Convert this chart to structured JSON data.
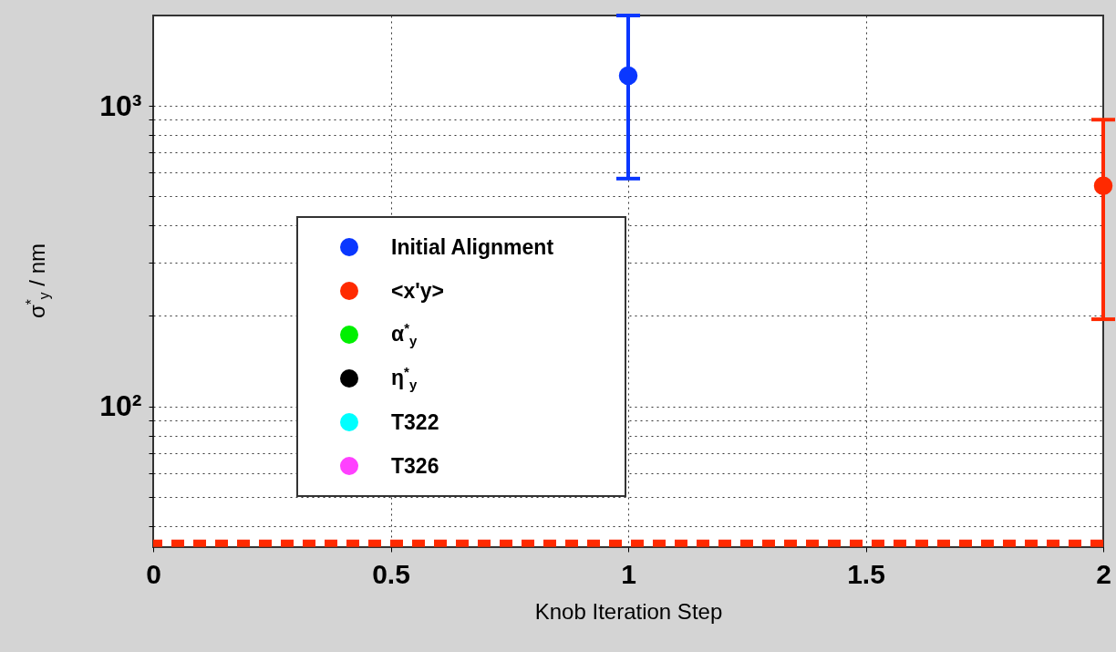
{
  "chart_data": {
    "type": "scatter",
    "xlabel": "Knob Iteration Step",
    "ylabel": "σ$^{*}$$_{y}$ / nm",
    "log": "y",
    "grid": true,
    "legend": "left",
    "marker": "circle",
    "xlim": [
      0,
      2
    ],
    "xticks": [
      0,
      0.5,
      1,
      1.5,
      2
    ],
    "ylim": [
      34,
      2000
    ],
    "yticks": [
      {
        "value": 40,
        "label": null
      },
      {
        "value": 50,
        "label": null
      },
      {
        "value": 60,
        "label": null
      },
      {
        "value": 70,
        "label": null
      },
      {
        "value": 80,
        "label": null
      },
      {
        "value": 90,
        "label": null
      },
      {
        "value": 100,
        "label": "10²"
      },
      {
        "value": 200,
        "label": null
      },
      {
        "value": 300,
        "label": null
      },
      {
        "value": 400,
        "label": null
      },
      {
        "value": 500,
        "label": null
      },
      {
        "value": 600,
        "label": null
      },
      {
        "value": 700,
        "label": null
      },
      {
        "value": 800,
        "label": null
      },
      {
        "value": 900,
        "label": null
      },
      {
        "value": 1000,
        "label": "10³"
      }
    ],
    "series": [
      {
        "name": "Initial Alignment",
        "color": "#0a37ff",
        "x": [
          1
        ],
        "values": [
          1260
        ],
        "errors": [
          [
            573,
            2000
          ]
        ]
      },
      {
        "name": "<x'y>",
        "color": "#ff2a00",
        "x": [
          2
        ],
        "values": [
          542
        ],
        "errors": [
          [
            195,
            900
          ]
        ]
      },
      {
        "name": "α$^{*}$$_{y}$",
        "color": "#00f000"
      },
      {
        "name": "η$^{*}$$_{y}$",
        "color": "#000000"
      },
      {
        "name": "T322",
        "color": "#00ffff"
      },
      {
        "name": "T326",
        "color": "#ff40ff"
      }
    ],
    "ref_lines": [
      {
        "axis": "y",
        "value": 35,
        "color": "#ff2a00",
        "line_style": "dashed"
      }
    ]
  }
}
